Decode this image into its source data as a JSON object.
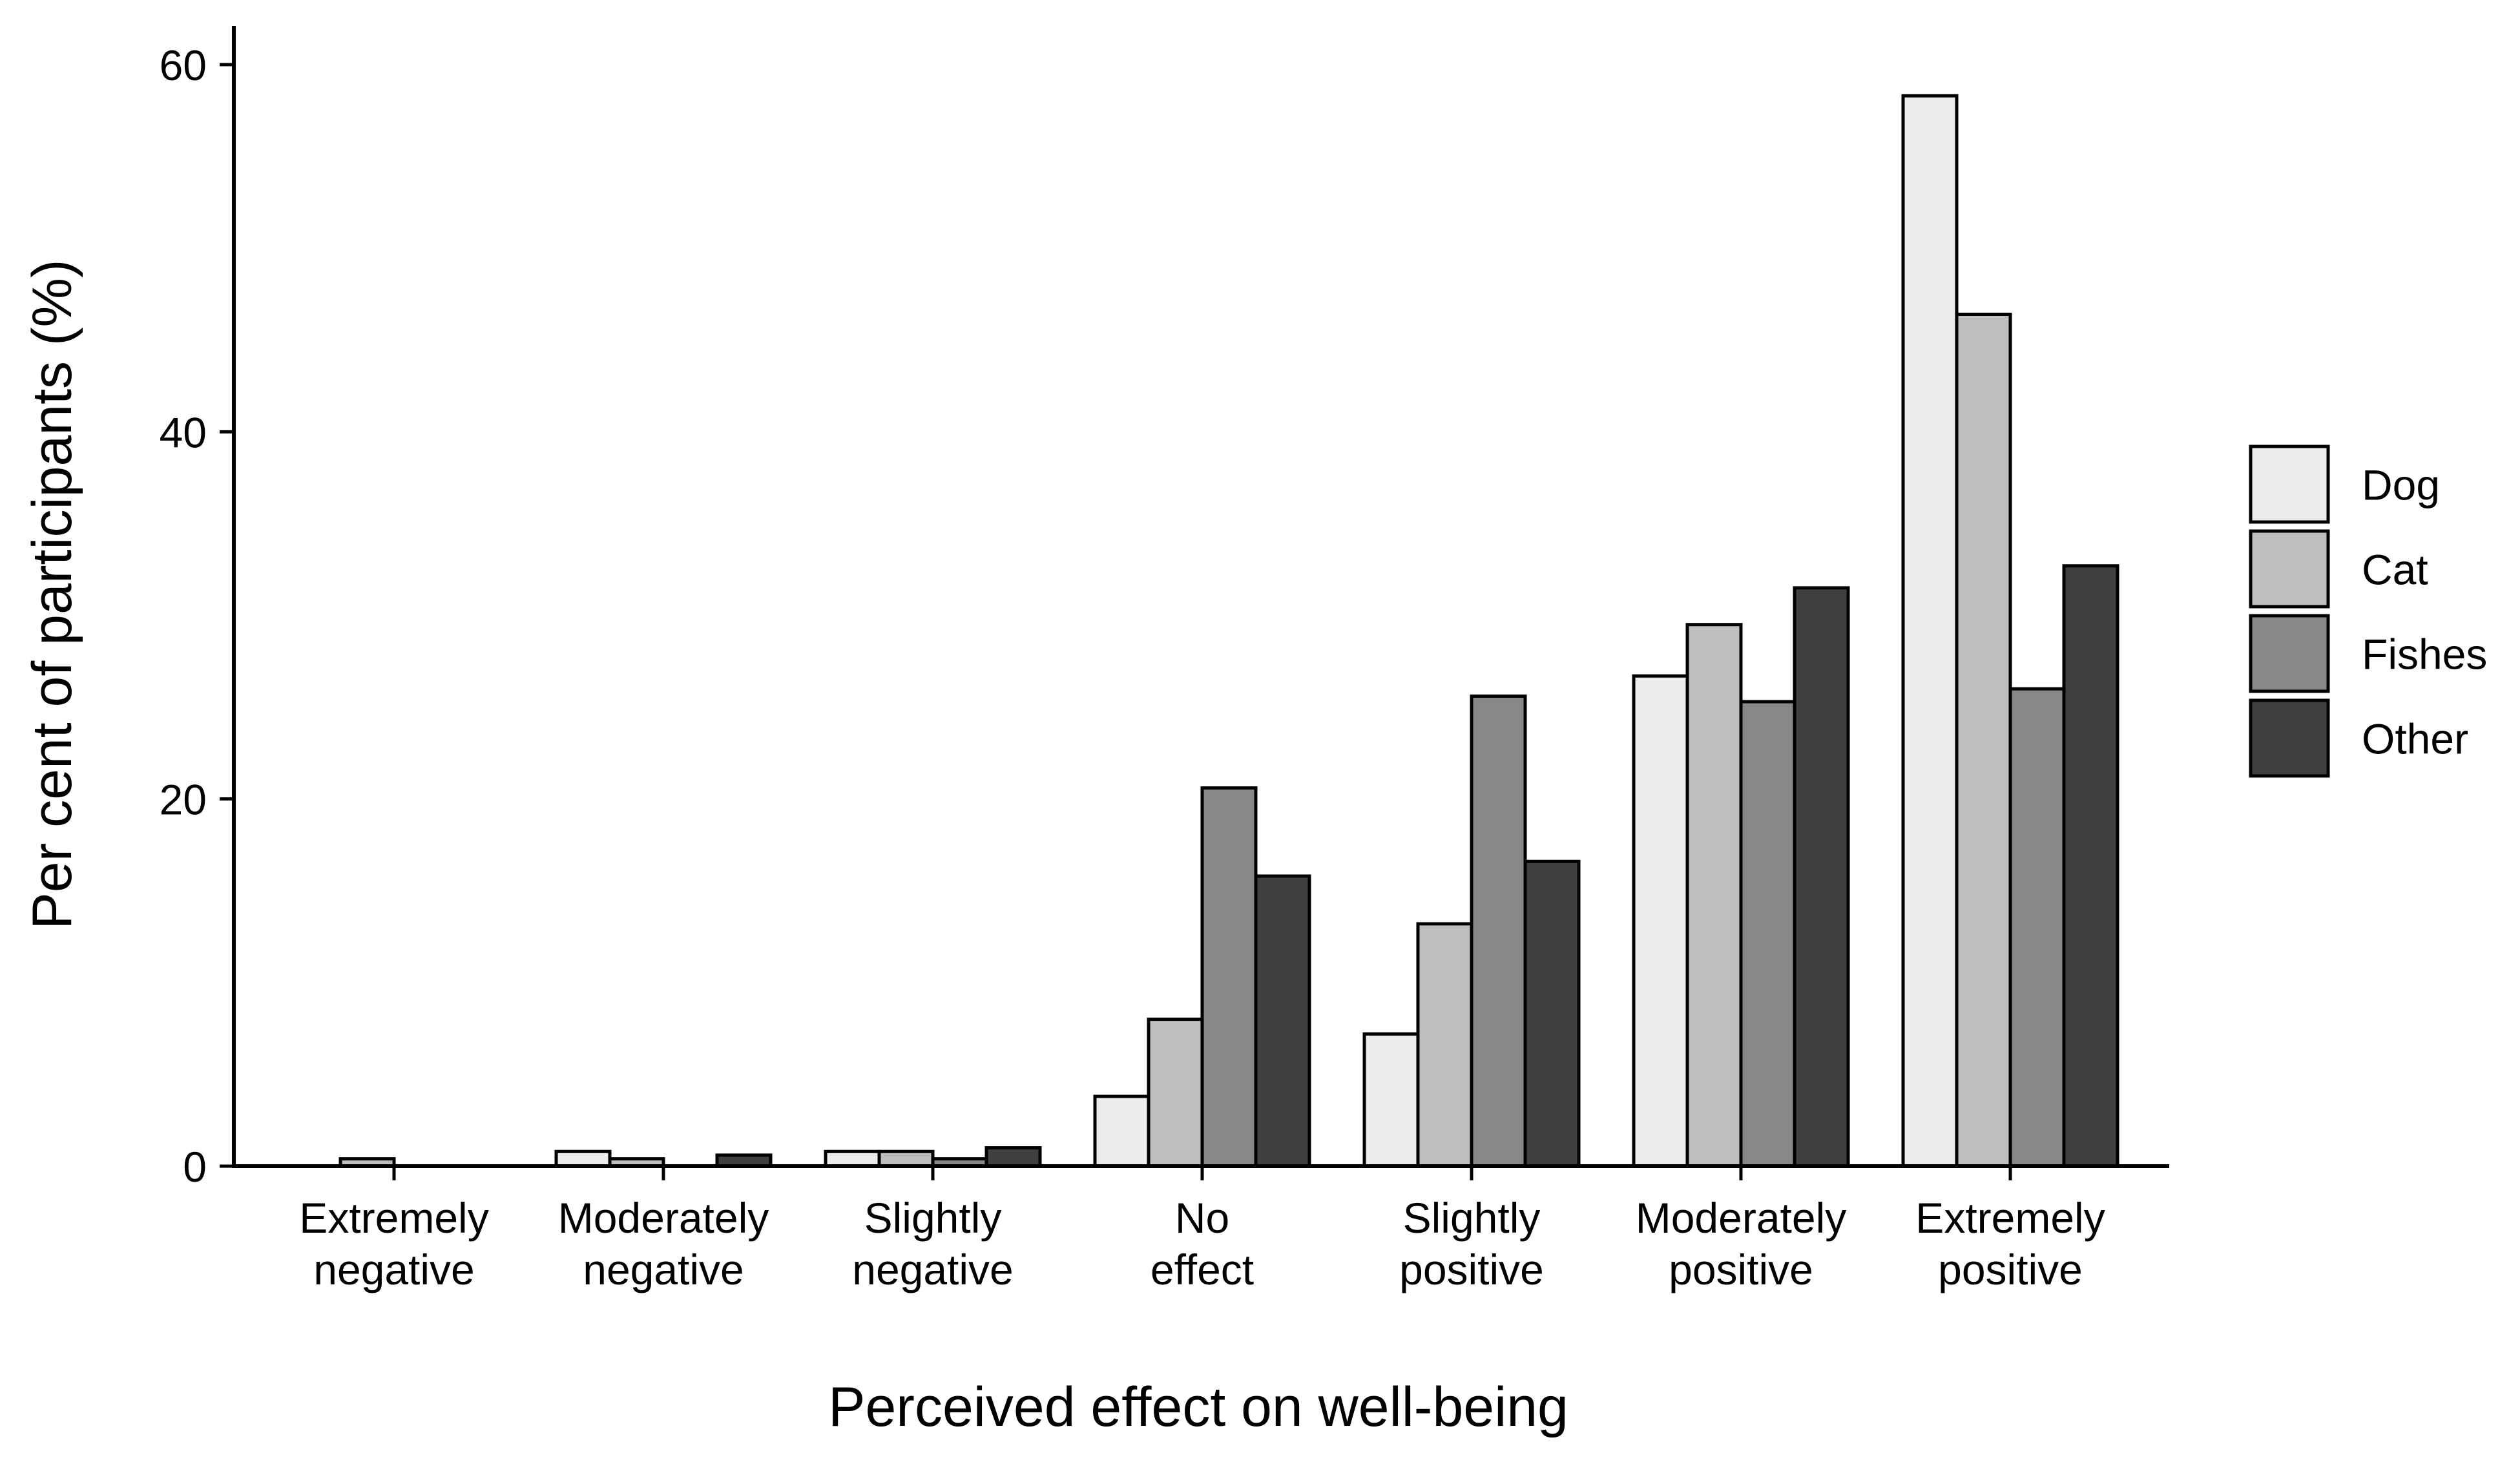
{
  "chart_data": {
    "type": "bar",
    "title": "",
    "xlabel": "Perceived effect on well-being",
    "ylabel": "Per cent of participants (%)",
    "ylim": [
      0,
      60
    ],
    "yticks": [
      "0",
      "20",
      "40",
      "60"
    ],
    "grid": false,
    "legend_position": "right",
    "categories": [
      [
        "Extremely",
        "negative"
      ],
      [
        "Moderately",
        "negative"
      ],
      [
        "Slightly",
        "negative"
      ],
      [
        "No",
        "effect"
      ],
      [
        "Slightly",
        "positive"
      ],
      [
        "Moderately",
        "positive"
      ],
      [
        "Extremely",
        "positive"
      ]
    ],
    "series": [
      {
        "name": "Dog",
        "color": "#ececec",
        "values": [
          0,
          0.8,
          0.8,
          3.8,
          7.2,
          26.7,
          58.3
        ]
      },
      {
        "name": "Cat",
        "color": "#bebebe",
        "values": [
          0.4,
          0.4,
          0.8,
          8.0,
          13.2,
          29.5,
          46.4
        ]
      },
      {
        "name": "Fishes",
        "color": "#888888",
        "values": [
          0,
          0,
          0.4,
          20.6,
          25.6,
          25.3,
          26.0
        ]
      },
      {
        "name": "Other",
        "color": "#404040",
        "values": [
          0,
          0.6,
          1.0,
          15.8,
          16.6,
          31.5,
          32.7
        ]
      }
    ]
  }
}
